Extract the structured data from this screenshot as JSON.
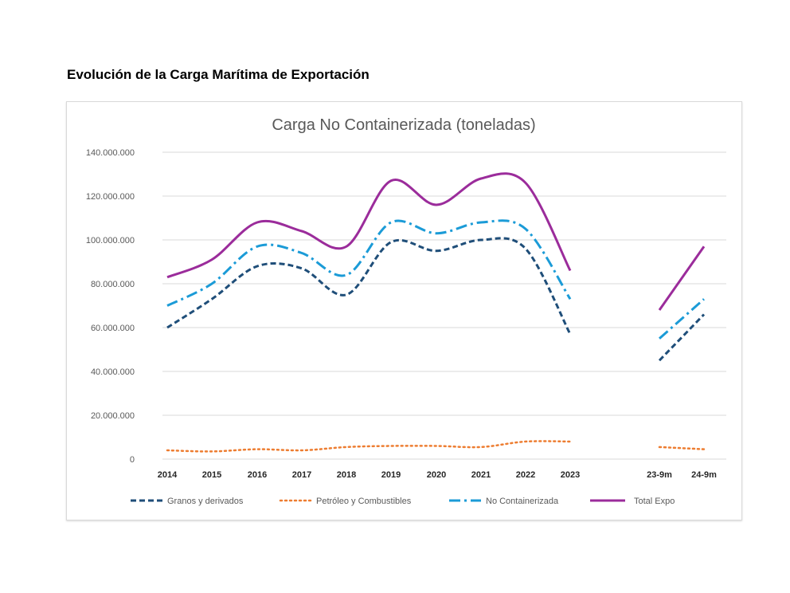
{
  "page_title": "Evolución de la Carga Marítima de Exportación",
  "chart_data": {
    "type": "line",
    "title": "Carga No Containerizada (toneladas)",
    "xlabel": "",
    "ylabel": "",
    "categories": [
      "2014",
      "2015",
      "2016",
      "2017",
      "2018",
      "2019",
      "2020",
      "2021",
      "2022",
      "2023",
      "",
      "23-9m",
      "24-9m"
    ],
    "yticks": [
      "0",
      "20.000.000",
      "40.000.000",
      "60.000.000",
      "80.000.000",
      "100.000.000",
      "120.000.000",
      "140.000.000"
    ],
    "ylim": [
      0,
      140000000
    ],
    "grid": true,
    "legend_position": "bottom",
    "series": [
      {
        "name": "Granos y derivados",
        "color": "#1f4e79",
        "style": "dashed",
        "values": [
          60000000,
          73000000,
          88000000,
          87000000,
          75000000,
          99000000,
          95000000,
          100000000,
          96000000,
          57000000,
          null,
          45000000,
          66000000
        ]
      },
      {
        "name": "Petróleo y Combustibles",
        "color": "#ed7d31",
        "style": "dotted",
        "values": [
          4000000,
          3500000,
          4500000,
          4000000,
          5500000,
          6000000,
          6000000,
          5500000,
          8000000,
          8000000,
          null,
          5500000,
          4500000
        ]
      },
      {
        "name": "No Containerizada",
        "color": "#1b9bd7",
        "style": "dashdot",
        "values": [
          70000000,
          80000000,
          97000000,
          94000000,
          84000000,
          108000000,
          103000000,
          108000000,
          105000000,
          73000000,
          null,
          55000000,
          73000000
        ]
      },
      {
        "name": "Total Expo",
        "color": "#9b2c9b",
        "style": "solid",
        "values": [
          83000000,
          91000000,
          108000000,
          104000000,
          97000000,
          127000000,
          116000000,
          128000000,
          126000000,
          86000000,
          null,
          68000000,
          97000000
        ]
      }
    ]
  }
}
